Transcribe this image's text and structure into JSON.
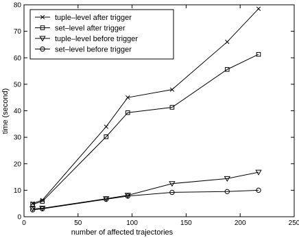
{
  "chart_data": {
    "type": "line",
    "title": "",
    "xlabel": "number of affected trajectories",
    "ylabel": "time (second)",
    "xlim": [
      0,
      250
    ],
    "ylim": [
      0,
      80
    ],
    "xticks": [
      0,
      50,
      100,
      150,
      200,
      250
    ],
    "yticks": [
      0,
      10,
      20,
      30,
      40,
      50,
      60,
      70,
      80
    ],
    "grid": false,
    "legend_position": "top-left",
    "series": [
      {
        "name": "tuple–level after trigger",
        "marker": "x",
        "x": [
          8,
          17,
          76,
          96,
          137,
          188,
          217
        ],
        "y": [
          5,
          6.3,
          34,
          45,
          48,
          66,
          78.5
        ]
      },
      {
        "name": "set–level after trigger",
        "marker": "square",
        "x": [
          8,
          17,
          76,
          96,
          137,
          188,
          217
        ],
        "y": [
          4.7,
          5.8,
          30.2,
          39.3,
          41.3,
          55.6,
          61.3
        ]
      },
      {
        "name": "tuple–level before trigger",
        "marker": "triangle-down",
        "x": [
          8,
          17,
          76,
          96,
          137,
          188,
          217
        ],
        "y": [
          3,
          3.2,
          6.8,
          8.1,
          12.5,
          14.4,
          16.8
        ]
      },
      {
        "name": "set–level before trigger",
        "marker": "circle",
        "x": [
          8,
          17,
          76,
          96,
          137,
          188,
          217
        ],
        "y": [
          2.6,
          3,
          6.6,
          7.8,
          9.2,
          9.5,
          10
        ]
      }
    ]
  }
}
